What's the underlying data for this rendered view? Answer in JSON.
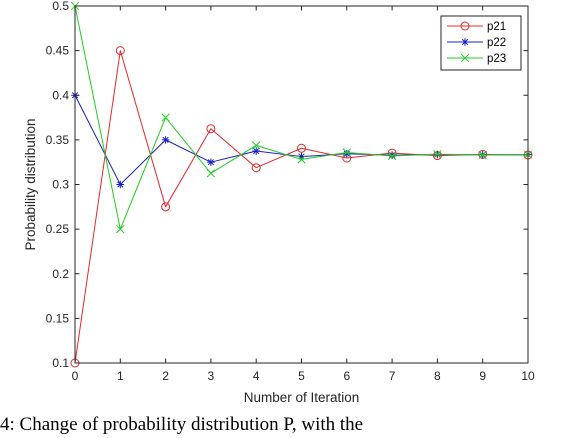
{
  "chart_data": {
    "type": "line",
    "xlabel": "Number of Iteration",
    "ylabel": "Probability distribution",
    "xlim": [
      0,
      10
    ],
    "ylim": [
      0.1,
      0.5
    ],
    "xticks": [
      0,
      1,
      2,
      3,
      4,
      5,
      6,
      7,
      8,
      9,
      10
    ],
    "yticks": [
      0.1,
      0.15,
      0.2,
      0.25,
      0.3,
      0.35,
      0.4,
      0.45,
      0.5
    ],
    "ytick_labels": [
      "0.1",
      "0.15",
      "0.2",
      "0.25",
      "0.3",
      "0.35",
      "0.4",
      "0.45",
      "0.5"
    ],
    "grid": false,
    "legend_position": "top-right",
    "x": [
      0,
      1,
      2,
      3,
      4,
      5,
      6,
      7,
      8,
      9,
      10
    ],
    "series": [
      {
        "name": "p21",
        "color": "#e8282d",
        "marker": "circle",
        "values": [
          0.1,
          0.45,
          0.275,
          0.3625,
          0.3188,
          0.3406,
          0.3297,
          0.3352,
          0.3324,
          0.3338,
          0.3331
        ]
      },
      {
        "name": "p22",
        "color": "#1c1ccf",
        "marker": "asterisk",
        "values": [
          0.4,
          0.3,
          0.35,
          0.325,
          0.3375,
          0.3313,
          0.3344,
          0.3328,
          0.3336,
          0.3332,
          0.3334
        ]
      },
      {
        "name": "p23",
        "color": "#22cc22",
        "marker": "x",
        "values": [
          0.5,
          0.25,
          0.375,
          0.3125,
          0.3438,
          0.3281,
          0.3359,
          0.332,
          0.334,
          0.333,
          0.3335
        ]
      }
    ]
  },
  "caption": "4: Change of probability distribution P, with the"
}
